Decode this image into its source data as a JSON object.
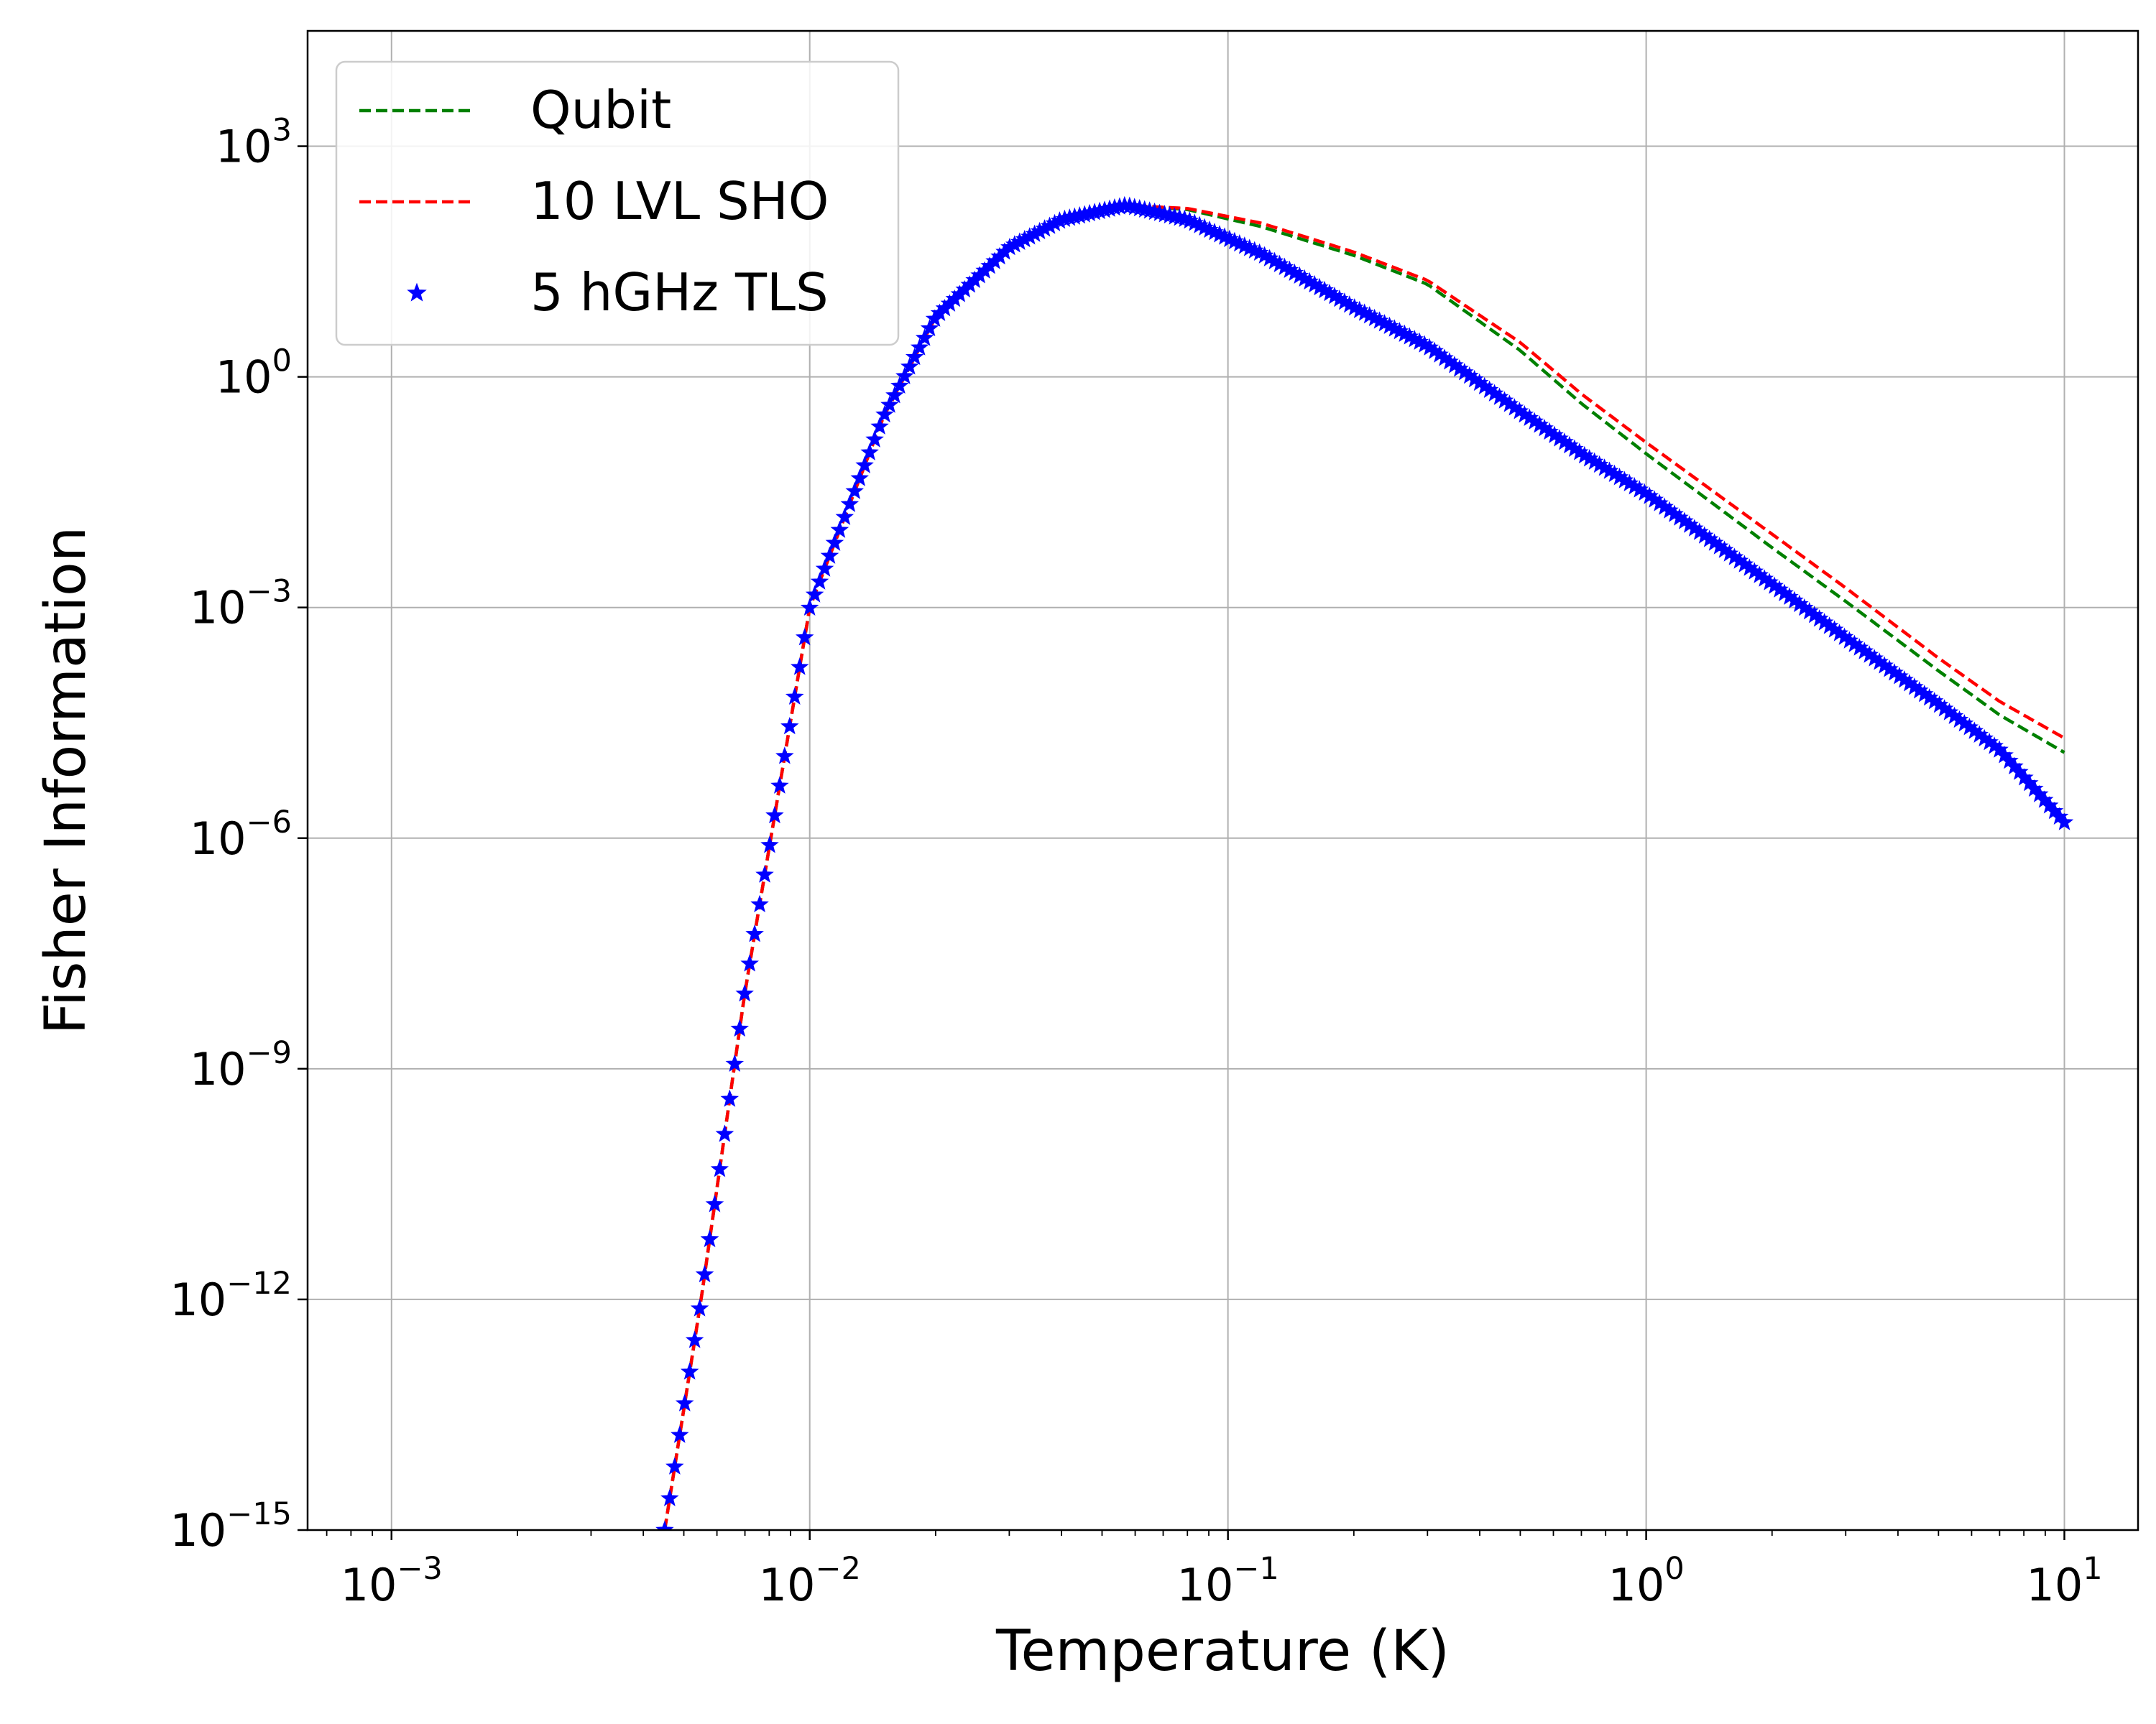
{
  "chart_data": {
    "type": "line",
    "xlabel": "Temperature (K)",
    "ylabel": "Fisher Information",
    "xscale": "log",
    "yscale": "log",
    "xlim": [
      0.00063,
      15.0
    ],
    "ylim": [
      1e-15,
      31622
    ],
    "grid": true,
    "legend_position": "top-left",
    "x_ticks": [
      {
        "value": 0.001,
        "base": "10",
        "exp": "−3"
      },
      {
        "value": 0.01,
        "base": "10",
        "exp": "−2"
      },
      {
        "value": 0.1,
        "base": "10",
        "exp": "−1"
      },
      {
        "value": 1,
        "base": "10",
        "exp": "0"
      },
      {
        "value": 10,
        "base": "10",
        "exp": "1"
      }
    ],
    "y_ticks": [
      {
        "value": 1e-15,
        "base": "10",
        "exp": "−15"
      },
      {
        "value": 1e-12,
        "base": "10",
        "exp": "−12"
      },
      {
        "value": 1e-09,
        "base": "10",
        "exp": "−9"
      },
      {
        "value": 1e-06,
        "base": "10",
        "exp": "−6"
      },
      {
        "value": 0.001,
        "base": "10",
        "exp": "−3"
      },
      {
        "value": 1,
        "base": "10",
        "exp": "0"
      },
      {
        "value": 1000,
        "base": "10",
        "exp": "3"
      }
    ],
    "series": [
      {
        "name": "Qubit",
        "style": "dashed",
        "color": "#008000",
        "x": [
          0.0045,
          0.0055,
          0.007,
          0.01,
          0.015,
          0.02,
          0.03,
          0.04,
          0.057,
          0.08,
          0.12,
          0.2,
          0.3,
          0.5,
          0.7,
          1.0,
          2.0,
          3.0,
          5.0,
          7.0,
          10.0
        ],
        "y": [
          1e-15,
          1e-12,
          1e-08,
          0.001,
          0.3,
          6,
          48,
          110,
          170,
          150,
          90,
          38,
          16,
          2.2,
          0.45,
          0.1,
          0.006,
          0.0012,
          0.00015,
          4e-05,
          1.3e-05
        ]
      },
      {
        "name": "10 LVL SHO",
        "style": "dashed",
        "color": "#ff0000",
        "x": [
          0.0045,
          0.0055,
          0.007,
          0.01,
          0.015,
          0.02,
          0.03,
          0.04,
          0.057,
          0.08,
          0.12,
          0.2,
          0.3,
          0.5,
          0.7,
          1.0,
          2.0,
          3.0,
          5.0,
          7.0,
          10.0
        ],
        "y": [
          1e-15,
          1e-12,
          1e-08,
          0.001,
          0.3,
          6,
          48,
          110,
          170,
          155,
          100,
          42,
          18,
          2.8,
          0.6,
          0.14,
          0.009,
          0.0018,
          0.00022,
          6e-05,
          2e-05
        ]
      },
      {
        "name": "5 hGHz TLS",
        "style": "markers",
        "marker": "star",
        "color": "#0000ff",
        "x": [
          0.0045,
          0.0055,
          0.007,
          0.01,
          0.015,
          0.02,
          0.03,
          0.04,
          0.057,
          0.08,
          0.12,
          0.2,
          0.3,
          0.5,
          0.7,
          1.0,
          2.0,
          3.0,
          5.0,
          7.0,
          10.0
        ],
        "y": [
          1e-15,
          1e-12,
          1e-08,
          0.001,
          0.3,
          6,
          48,
          110,
          170,
          110,
          40,
          8,
          2.5,
          0.35,
          0.1,
          0.03,
          0.002,
          0.0004,
          5.5e-05,
          1.4e-05,
          1.6e-06
        ]
      }
    ]
  }
}
